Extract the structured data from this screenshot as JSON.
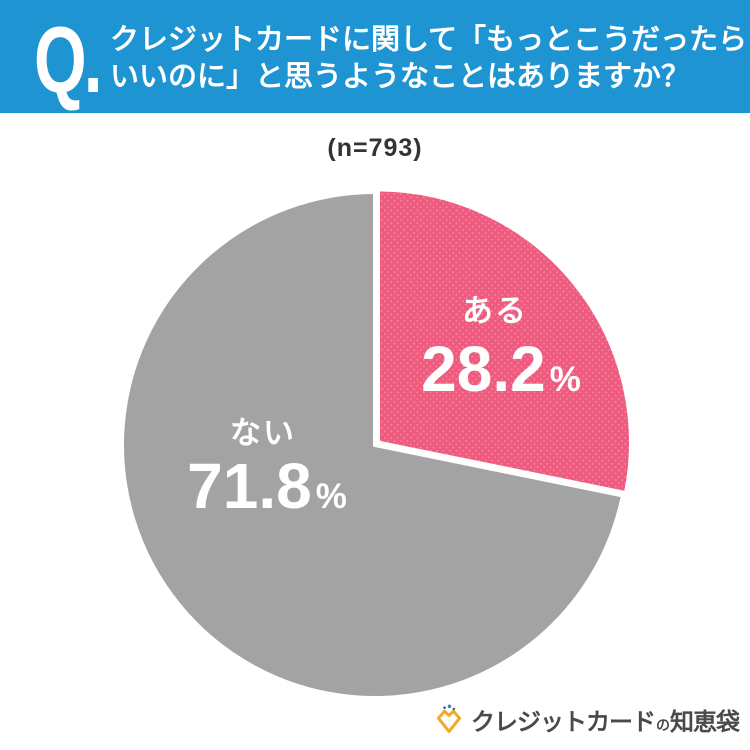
{
  "header": {
    "q_label": "Q.",
    "question_line1": "クレジットカードに関して「もっとこうだったら",
    "question_line2": "いいのに」と思うようなことはありますか？",
    "bg_color": "#1E95D2",
    "text_color": "#FFFFFF"
  },
  "chart_data": {
    "type": "pie",
    "title": "クレジットカードに関して「もっとこうだったらいいのに」と思うようなことはありますか？",
    "sample_label": "(n=793)",
    "sample_size": 793,
    "unit": "%",
    "start_angle_deg": 0,
    "direction": "clockwise",
    "labels_position": "inside",
    "legend": "none",
    "separator_color": "#FFFFFF",
    "slices": [
      {
        "label": "ある",
        "value": 28.2,
        "color": "#EE5B7E",
        "pattern": "dots",
        "pattern_dot_color": "#F583A0",
        "text_color": "#FFFFFF"
      },
      {
        "label": "ない",
        "value": 71.8,
        "color": "#A3A3A3",
        "pattern": "solid",
        "text_color": "#FFFFFF"
      }
    ]
  },
  "footer": {
    "logo_text_main": "クレジットカード",
    "logo_text_particle": "の",
    "logo_text_tail": "知恵袋",
    "logo_text_color": "#4A4A4A",
    "logo_icon": "money-pouch-sparkle-icon",
    "logo_icon_color": "#F0A929",
    "logo_icon_dot_color": "#3C6E9F"
  }
}
